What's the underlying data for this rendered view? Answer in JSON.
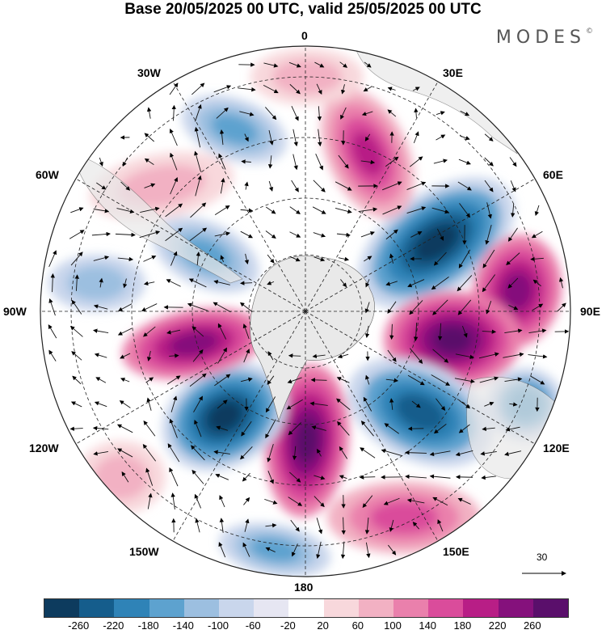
{
  "header": {
    "title": "Base 20/05/2025 00 UTC, valid 25/05/2025 00 UTC",
    "brand": "MODES",
    "brand_mark": "©"
  },
  "longitude_labels": {
    "n0": "0",
    "e30": "30E",
    "e60": "60E",
    "e90": "90E",
    "e120": "120E",
    "e150": "150E",
    "s180": "180",
    "w150": "150W",
    "w120": "120W",
    "w90": "90W",
    "w60": "60W",
    "w30": "30W"
  },
  "vector_scale": {
    "label": "30"
  },
  "colorbar": {
    "colors": [
      "#0d3b5e",
      "#155d8c",
      "#2f83b7",
      "#5da2cf",
      "#9cbfe0",
      "#c9d6ec",
      "#e6e6f2",
      "#ffffff",
      "#f8d8dc",
      "#f2b1c3",
      "#ea80ac",
      "#da4c9b",
      "#b81e86",
      "#85117c",
      "#5a0f6b"
    ],
    "ticks": [
      "-260",
      "-220",
      "-180",
      "-140",
      "-100",
      "-60",
      "-20",
      "20",
      "60",
      "100",
      "140",
      "180",
      "220",
      "260"
    ]
  },
  "map": {
    "projection": "polar-stereographic-south",
    "land_color": "#e9e9e9",
    "graticule": "dashed"
  }
}
